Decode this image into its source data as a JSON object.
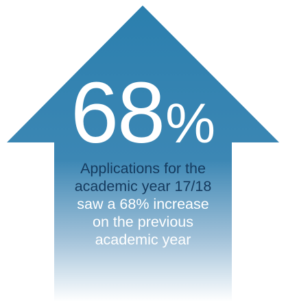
{
  "colors": {
    "arrow_top": "#2b7fae",
    "arrow_bottom": "#ffffff",
    "caption_dark": "#143a5e",
    "caption_light": "#ffffff"
  },
  "stat": {
    "value": "68",
    "unit": "%"
  },
  "caption": {
    "highlight_lines": [
      "Applications for the",
      "academic year 17/18"
    ],
    "body_lines": [
      "saw a 68% increase",
      "on the previous",
      "academic year"
    ]
  }
}
